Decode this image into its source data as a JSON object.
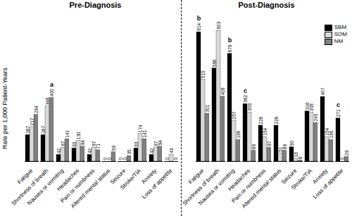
{
  "chart_data": [
    {
      "type": "bar",
      "title": "Pre-Diagnosis",
      "ylabel": "Rate per 1,000 Patient-Years",
      "categories": [
        "Fatigue",
        "Shortness of breath",
        "Nausea or vomiting",
        "Headaches",
        "Pain or numbness",
        "Altered mental status",
        "Seizure",
        "Stroke/TIA",
        "Anxiety",
        "Loss of appetite"
      ],
      "series": [
        {
          "name": "SBM",
          "color": "#000000",
          "values": [
            167,
            167,
            42,
            83,
            42,
            0,
            0,
            83,
            42,
            0
          ]
        },
        {
          "name": "SOM",
          "color": "#d9d9d9",
          "values": [
            217,
            346,
            87,
            130,
            87,
            0,
            0,
            174,
            87,
            43
          ]
        },
        {
          "name": "NM",
          "color": "#808080",
          "values": [
            294,
            400,
            141,
            94,
            71,
            59,
            35,
            141,
            94,
            0
          ]
        }
      ],
      "annotations": [
        {
          "text": "a",
          "category": "Shortness of breath",
          "series": "NM"
        }
      ],
      "ylim": [
        0,
        850
      ],
      "data_labels": true,
      "tick_labels": "x"
    },
    {
      "type": "bar",
      "title": "Post-Diagnosis",
      "categories": [
        "Fatigue",
        "Shortness of breath",
        "Nausea or vomiting",
        "Headaches",
        "Pain or numbness",
        "Altered mental status",
        "Seizure",
        "Stroke/TIA",
        "Anxiety",
        "Loss of appetite"
      ],
      "series": [
        {
          "name": "SBM",
          "color": "#000000",
          "values": [
            814,
            586,
            678,
            362,
            226,
            226,
            90,
            316,
            407,
            271
          ]
        },
        {
          "name": "SOM",
          "color": "#d9d9d9",
          "values": [
            515,
            823,
            257,
            309,
            154,
            51,
            18,
            308,
            154,
            0
          ]
        },
        {
          "name": "NM",
          "color": "#808080",
          "values": [
            301,
            408,
            136,
            68,
            87,
            68,
            6,
            243,
            136,
            29
          ]
        }
      ],
      "annotations": [
        {
          "text": "b",
          "category": "Fatigue",
          "series": "SBM"
        },
        {
          "text": "b",
          "category": "Nausea or vomiting",
          "series": "SBM"
        },
        {
          "text": "c",
          "category": "Headaches",
          "series": "SBM"
        },
        {
          "text": "c",
          "category": "Loss of appetite",
          "series": "SBM"
        }
      ],
      "ylim": [
        0,
        850
      ],
      "data_labels": true,
      "tick_labels": "x",
      "legend": "top-right"
    }
  ]
}
